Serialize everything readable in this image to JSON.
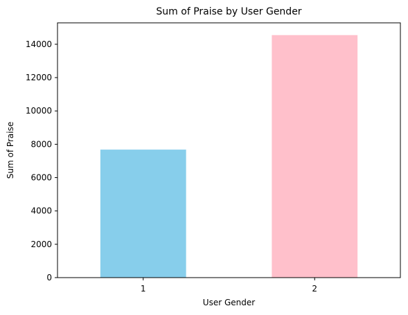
{
  "chart_data": {
    "type": "bar",
    "title": "Sum of Praise by User Gender",
    "xlabel": "User Gender",
    "ylabel": "Sum of Praise",
    "categories": [
      "1",
      "2"
    ],
    "values": [
      7680,
      14550
    ],
    "bar_colors": [
      "#87CEEB",
      "#FFC0CB"
    ],
    "ylim": [
      0,
      15285
    ],
    "yticks": [
      0,
      2000,
      4000,
      6000,
      8000,
      10000,
      12000,
      14000
    ],
    "grid": false,
    "legend": "none"
  }
}
